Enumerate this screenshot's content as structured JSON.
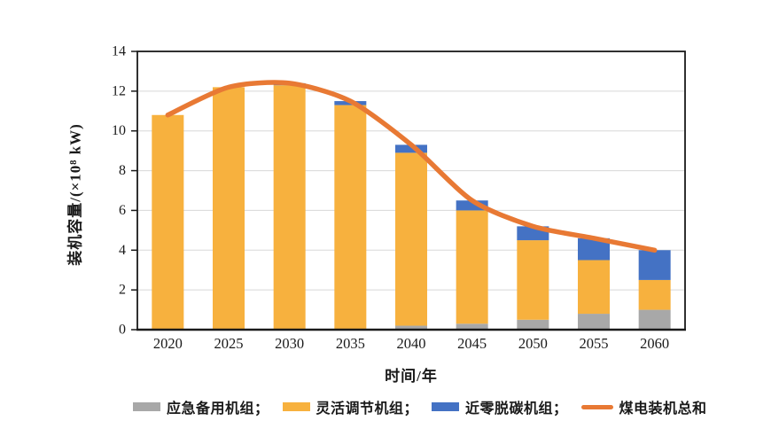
{
  "chart_data": {
    "type": "bar",
    "stacked": true,
    "orientation": "vertical",
    "title": "",
    "xlabel": "时间/年",
    "ylabel": "装机容量/(×10⁸ kW)",
    "categories": [
      "2020",
      "2025",
      "2030",
      "2035",
      "2040",
      "2045",
      "2050",
      "2055",
      "2060"
    ],
    "series": [
      {
        "name": "应急备用机组",
        "type": "bar",
        "color": "#A8A8A8",
        "values": [
          0,
          0,
          0,
          0,
          0.2,
          0.3,
          0.5,
          0.8,
          1.0
        ]
      },
      {
        "name": "灵活调节机组",
        "type": "bar",
        "color": "#F7B13E",
        "values": [
          10.8,
          12.2,
          12.3,
          11.3,
          8.7,
          5.7,
          4.0,
          2.7,
          1.5
        ]
      },
      {
        "name": "近零脱碳机组",
        "type": "bar",
        "color": "#4472C4",
        "values": [
          0,
          0,
          0.1,
          0.2,
          0.4,
          0.5,
          0.7,
          1.1,
          1.5
        ]
      },
      {
        "name": "煤电装机总和",
        "type": "line",
        "color": "#E87934",
        "values": [
          10.8,
          12.2,
          12.4,
          11.5,
          9.3,
          6.5,
          5.2,
          4.6,
          4.0
        ]
      }
    ],
    "ylim": [
      0,
      14
    ],
    "ytick_step": 2,
    "ytick_labels": [
      "0",
      "2",
      "4",
      "6",
      "8",
      "10",
      "12",
      "14"
    ],
    "grid": true,
    "legend_position": "bottom"
  },
  "legend": [
    {
      "label": "应急备用机组；",
      "swatch": "rect",
      "color": "#A8A8A8"
    },
    {
      "label": "灵活调节机组；",
      "swatch": "rect",
      "color": "#F7B13E"
    },
    {
      "label": "近零脱碳机组；",
      "swatch": "rect",
      "color": "#4472C4"
    },
    {
      "label": "煤电装机总和",
      "swatch": "line",
      "color": "#E87934"
    }
  ],
  "colors": {
    "grid": "#D8D8D8",
    "axis": "#1a1a1a",
    "text": "#1a1a1a",
    "background": "#ffffff"
  }
}
